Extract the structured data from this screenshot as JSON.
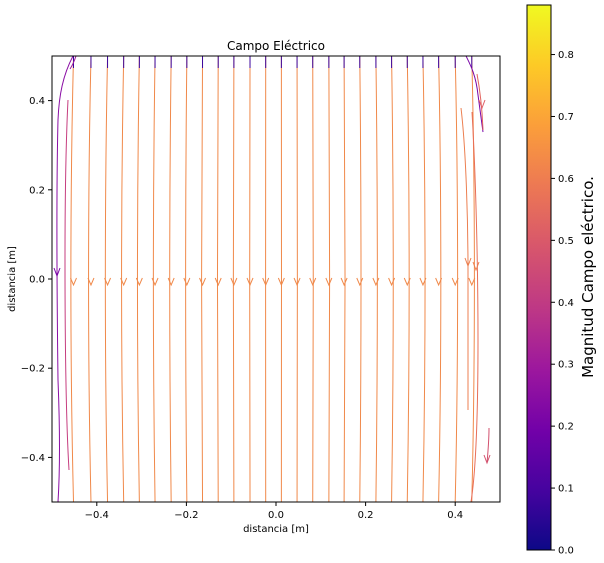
{
  "chart_data": {
    "type": "streamplot",
    "title": "Campo Eléctrico",
    "xlabel": "distancia [m]",
    "ylabel": "distancia [m]",
    "xlim": [
      -0.5,
      0.5
    ],
    "ylim": [
      -0.5,
      0.5
    ],
    "x_ticks": [
      -0.4,
      -0.2,
      0.0,
      0.2,
      0.4
    ],
    "x_tick_labels": [
      "−0.4",
      "−0.2",
      "0.0",
      "0.2",
      "0.4"
    ],
    "y_ticks": [
      -0.4,
      -0.2,
      0.0,
      0.2,
      0.4
    ],
    "y_tick_labels": [
      "−0.4",
      "−0.2",
      "0.0",
      "0.2",
      "0.4"
    ],
    "field_direction": "downward (-y)",
    "colormap": "plasma",
    "colorbar": {
      "label": "Magnitud Campo eléctrico.",
      "range": [
        0.0,
        0.88
      ],
      "ticks": [
        0.0,
        0.1,
        0.2,
        0.3,
        0.4,
        0.5,
        0.6,
        0.7,
        0.8
      ],
      "tick_labels": [
        "0.0",
        "0.1",
        "0.2",
        "0.3",
        "0.4",
        "0.5",
        "0.6",
        "0.7",
        "0.8"
      ]
    },
    "streamlines_x": [
      -0.452,
      -0.413,
      -0.376,
      -0.34,
      -0.305,
      -0.27,
      -0.234,
      -0.199,
      -0.164,
      -0.129,
      -0.094,
      -0.058,
      -0.023,
      0.012,
      0.047,
      0.082,
      0.118,
      0.152,
      0.187,
      0.223,
      0.258,
      0.293,
      0.328,
      0.363,
      0.4,
      0.437
    ],
    "arrows_y": 0.0
  }
}
